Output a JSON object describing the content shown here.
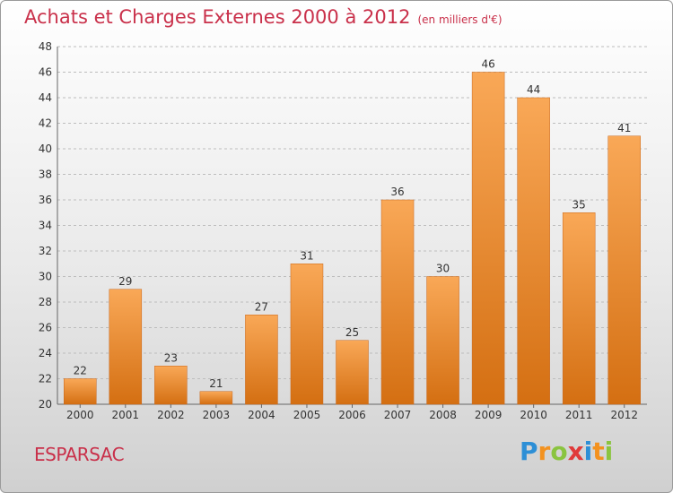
{
  "chart_data": {
    "type": "bar",
    "title": "Achats et Charges Externes 2000 à 2012",
    "subtitle": "(en milliers d'€)",
    "categories": [
      "2000",
      "2001",
      "2002",
      "2003",
      "2004",
      "2005",
      "2006",
      "2007",
      "2008",
      "2009",
      "2010",
      "2011",
      "2012"
    ],
    "values": [
      22,
      29,
      23,
      21,
      27,
      31,
      25,
      36,
      30,
      46,
      44,
      35,
      41
    ],
    "ylim": [
      20,
      48
    ],
    "yticks": [
      20,
      22,
      24,
      26,
      28,
      30,
      32,
      34,
      36,
      38,
      40,
      42,
      44,
      46,
      48
    ],
    "xlabel": "",
    "ylabel": "",
    "grid": true,
    "bar_color": "#f08a24"
  },
  "commune": "ESPARSAC",
  "logo": {
    "letters": [
      "P",
      "r",
      "o",
      "x",
      "i",
      "t",
      "i"
    ]
  }
}
